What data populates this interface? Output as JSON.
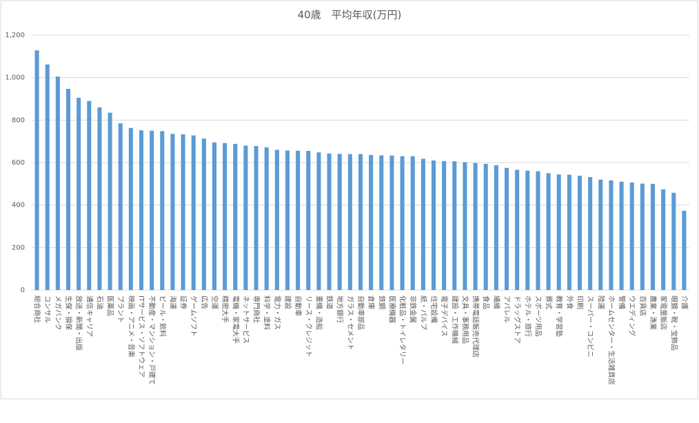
{
  "chart_data": {
    "type": "bar",
    "title": "40歳　平均年収(万円)",
    "categories": [
      "総合商社",
      "コンサル",
      "メガバンク",
      "生保・損保",
      "放送・新聞・出版",
      "通信キャリア",
      "石油",
      "医薬品",
      "プラント",
      "映画・アニメ・音楽",
      "ITサービス・ソフトウェア",
      "不動産・マンション・戸建て",
      "ビール・飲料",
      "海運",
      "証券",
      "ゲームソフト",
      "広告",
      "空運",
      "精密大手",
      "電機・家電大手",
      "ネットサービス",
      "専門商社",
      "科学・塗料",
      "電力・ガス",
      "建設",
      "自動車",
      "リース・クレジット",
      "重機・造船",
      "鉄道",
      "地方銀行",
      "ガラス・セメント",
      "自動車部品",
      "倉庫",
      "鉄鋼",
      "医療機器",
      "化粧品・トイレタリー",
      "非鉄金属",
      "紙・パルプ",
      "住宅設備",
      "電子デバイス",
      "建設・工作機械",
      "文具・事務用品",
      "携帯電話販売代理店",
      "食品",
      "繊維",
      "アパレル",
      "ドラッグストア",
      "ホテル・旅行",
      "スポーツ用品",
      "葬式",
      "教育・学習塾",
      "外食",
      "印刷",
      "スーパー・コンビニ",
      "陸運",
      "ホームセンター・生活雑貨店",
      "警備",
      "ウエディング",
      "百貨店",
      "農業・漁業",
      "家電量販店",
      "眼鏡・靴・宝飾品",
      "介護"
    ],
    "values": [
      1128,
      1062,
      1005,
      947,
      905,
      890,
      860,
      835,
      785,
      763,
      752,
      750,
      748,
      735,
      733,
      728,
      713,
      695,
      692,
      688,
      680,
      678,
      672,
      660,
      657,
      656,
      655,
      648,
      643,
      641,
      640,
      640,
      636,
      634,
      633,
      630,
      630,
      618,
      610,
      607,
      606,
      602,
      598,
      594,
      588,
      575,
      566,
      562,
      559,
      550,
      544,
      543,
      538,
      532,
      520,
      516,
      510,
      506,
      501,
      500,
      474,
      458,
      373
    ],
    "color": "#5b9bd5",
    "ylim": [
      0,
      1200
    ],
    "yticks": [
      0,
      200,
      400,
      600,
      800,
      {
        "value": 1000,
        "label": "1,000"
      },
      {
        "value": 1200,
        "label": "1,200"
      }
    ],
    "grid": true
  }
}
